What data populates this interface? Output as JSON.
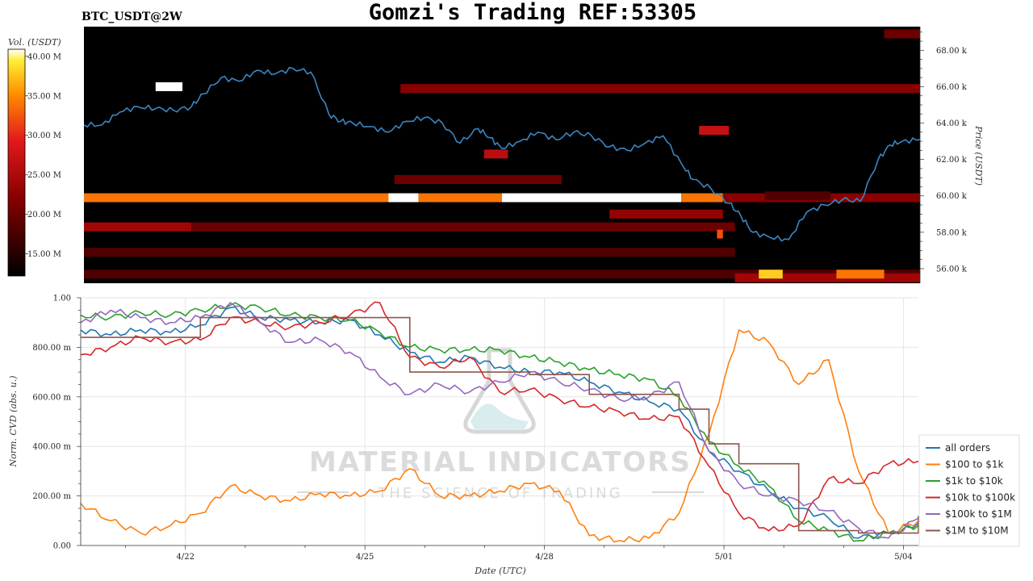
{
  "header": {
    "symbol": "BTC_USDT@2W",
    "title": "Gomzi's Trading REF:53305"
  },
  "colorbar": {
    "label": "Vol. (USDT)",
    "ticks": [
      "15.00 M",
      "20.00 M",
      "25.00 M",
      "30.00 M",
      "35.00 M",
      "40.00 M"
    ],
    "range": [
      12.2,
      40.9
    ]
  },
  "watermark": {
    "line1": "MATERIAL INDICATORS",
    "line2": "THE SCIENCE OF TRADING"
  },
  "chart_data": [
    {
      "type": "heatmap",
      "ylabel": "Price (USDT)",
      "ylim": [
        55.2,
        69.3
      ],
      "y_ticks": [
        "56.00 k",
        "58.00 k",
        "60.00 k",
        "62.00 k",
        "64.00 k",
        "66.00 k",
        "68.00 k"
      ],
      "y_tick_values": [
        56,
        58,
        60,
        62,
        64,
        66,
        68
      ],
      "xlim": [
        0,
        14
      ],
      "bands": [
        {
          "price": 59.9,
          "x_start": 0,
          "x_end": 10.7,
          "volume": 34
        },
        {
          "price": 59.9,
          "x_start": 5.1,
          "x_end": 5.6,
          "volume": 40.9
        },
        {
          "price": 59.9,
          "x_start": 7.0,
          "x_end": 10.0,
          "volume": 40.9
        },
        {
          "price": 59.9,
          "x_start": 10.7,
          "x_end": 14,
          "volume": 22
        },
        {
          "price": 58.3,
          "x_start": 0,
          "x_end": 1.8,
          "volume": 24
        },
        {
          "price": 58.3,
          "x_start": 1.8,
          "x_end": 10.9,
          "volume": 20
        },
        {
          "price": 56.9,
          "x_start": 0,
          "x_end": 10.9,
          "volume": 18
        },
        {
          "price": 55.7,
          "x_start": 0,
          "x_end": 14,
          "volume": 18
        },
        {
          "price": 55.5,
          "x_start": 10.9,
          "x_end": 14,
          "volume": 24
        },
        {
          "price": 55.7,
          "x_start": 11.3,
          "x_end": 11.7,
          "volume": 38
        },
        {
          "price": 55.7,
          "x_start": 12.6,
          "x_end": 13.4,
          "volume": 34
        },
        {
          "price": 65.9,
          "x_start": 5.3,
          "x_end": 14,
          "volume": 22
        },
        {
          "price": 60.9,
          "x_start": 5.2,
          "x_end": 8.0,
          "volume": 20
        },
        {
          "price": 59.0,
          "x_start": 8.8,
          "x_end": 10.7,
          "volume": 23
        },
        {
          "price": 66.0,
          "x_start": 1.2,
          "x_end": 1.65,
          "volume": 44
        },
        {
          "price": 63.6,
          "x_start": 10.3,
          "x_end": 10.8,
          "volume": 27
        },
        {
          "price": 62.3,
          "x_start": 6.7,
          "x_end": 7.1,
          "volume": 26
        },
        {
          "price": 57.9,
          "x_start": 10.6,
          "x_end": 10.7,
          "volume": 32
        },
        {
          "price": 60.0,
          "x_start": 11.4,
          "x_end": 12.5,
          "volume": 18
        },
        {
          "price": 68.9,
          "x_start": 13.4,
          "x_end": 14,
          "volume": 20
        }
      ],
      "price": {
        "name": "BTC_USDT",
        "x": [
          0,
          0.3,
          0.6,
          0.9,
          1.2,
          1.5,
          1.8,
          2.0,
          2.3,
          2.6,
          2.9,
          3.2,
          3.5,
          3.8,
          4.1,
          4.3,
          4.5,
          4.8,
          5.1,
          5.4,
          5.7,
          6.0,
          6.3,
          6.6,
          6.8,
          7.0,
          7.3,
          7.6,
          7.9,
          8.2,
          8.5,
          8.8,
          9.1,
          9.4,
          9.7,
          10.0,
          10.2,
          10.5,
          10.8,
          11.0,
          11.2,
          11.5,
          11.8,
          12.1,
          12.4,
          12.7,
          13.0,
          13.3,
          13.5,
          13.7,
          14.0
        ],
        "y": [
          63.9,
          63.9,
          64.6,
          64.9,
          64.8,
          64.7,
          64.9,
          65.6,
          66.5,
          66.3,
          66.9,
          66.7,
          67.0,
          66.8,
          64.5,
          64.1,
          64.0,
          63.8,
          63.5,
          64.1,
          64.3,
          64.0,
          62.9,
          63.7,
          63.2,
          62.6,
          63.0,
          63.5,
          63.1,
          63.5,
          63.3,
          62.7,
          62.5,
          62.9,
          63.3,
          61.8,
          60.9,
          60.4,
          59.6,
          58.9,
          58.0,
          57.7,
          57.6,
          59.1,
          59.5,
          59.8,
          59.7,
          62.0,
          62.8,
          63.0,
          63.1
        ]
      }
    },
    {
      "type": "line",
      "xlabel": "Date (UTC)",
      "ylabel": "Norm. CVD (abs. u.)",
      "ylim": [
        0,
        1
      ],
      "y_ticks": [
        "0.00",
        "200.00 m",
        "400.00 m",
        "600.00 m",
        "800.00 m",
        "1.00"
      ],
      "y_tick_values": [
        0,
        0.2,
        0.4,
        0.6,
        0.8,
        1.0
      ],
      "xlim": [
        0,
        14
      ],
      "x_ticks": [
        "4/22",
        "4/25",
        "4/28",
        "5/01",
        "5/04"
      ],
      "x_tick_values": [
        1.75,
        4.75,
        7.75,
        10.75,
        13.75
      ],
      "grid": true,
      "legend_position": "lower-right",
      "x": [
        0,
        0.5,
        1.0,
        1.5,
        2.0,
        2.5,
        3.0,
        3.5,
        4.0,
        4.5,
        5.0,
        5.5,
        6.0,
        6.5,
        7.0,
        7.5,
        8.0,
        8.5,
        9.0,
        9.5,
        10.0,
        10.5,
        11.0,
        11.5,
        12.0,
        12.5,
        13.0,
        13.5,
        14.0
      ],
      "series": [
        {
          "name": "all orders",
          "color": "#1f77b4",
          "values": [
            0.87,
            0.85,
            0.87,
            0.86,
            0.89,
            0.96,
            0.92,
            0.91,
            0.9,
            0.91,
            0.85,
            0.78,
            0.74,
            0.76,
            0.72,
            0.7,
            0.7,
            0.66,
            0.62,
            0.58,
            0.55,
            0.38,
            0.3,
            0.22,
            0.15,
            0.11,
            0.03,
            0.05,
            0.09
          ]
        },
        {
          "name": "$100 to $1k",
          "color": "#ff7f0e",
          "values": [
            0.17,
            0.1,
            0.05,
            0.08,
            0.13,
            0.24,
            0.2,
            0.18,
            0.21,
            0.2,
            0.22,
            0.31,
            0.2,
            0.2,
            0.22,
            0.25,
            0.22,
            0.04,
            0.02,
            0.03,
            0.13,
            0.45,
            0.87,
            0.82,
            0.65,
            0.75,
            0.3,
            0.05,
            0.1
          ]
        },
        {
          "name": "$1k to $10k",
          "color": "#2ca02c",
          "values": [
            0.93,
            0.92,
            0.94,
            0.93,
            0.95,
            0.97,
            0.96,
            0.93,
            0.92,
            0.91,
            0.86,
            0.8,
            0.79,
            0.79,
            0.79,
            0.76,
            0.74,
            0.71,
            0.69,
            0.67,
            0.6,
            0.42,
            0.32,
            0.24,
            0.1,
            0.06,
            0.02,
            0.05,
            0.08
          ]
        },
        {
          "name": "$10k to $100k",
          "color": "#d62728",
          "values": [
            0.77,
            0.8,
            0.84,
            0.82,
            0.83,
            0.92,
            0.9,
            0.88,
            0.9,
            0.93,
            0.98,
            0.76,
            0.72,
            0.76,
            0.62,
            0.63,
            0.59,
            0.56,
            0.54,
            0.51,
            0.52,
            0.32,
            0.13,
            0.06,
            0.08,
            0.27,
            0.25,
            0.33,
            0.34
          ]
        },
        {
          "name": "$100k to $1M",
          "color": "#9467bd",
          "values": [
            0.9,
            0.95,
            0.92,
            0.9,
            0.92,
            0.98,
            0.9,
            0.82,
            0.83,
            0.78,
            0.68,
            0.61,
            0.65,
            0.62,
            0.66,
            0.7,
            0.66,
            0.63,
            0.59,
            0.6,
            0.66,
            0.38,
            0.25,
            0.2,
            0.18,
            0.14,
            0.07,
            0.03,
            0.11
          ]
        },
        {
          "name": "$1M to $10M",
          "color": "#8c564b",
          "values": [
            0.84,
            0.84,
            0.84,
            0.84,
            0.92,
            0.92,
            0.92,
            0.92,
            0.92,
            0.92,
            0.92,
            0.7,
            0.7,
            0.7,
            0.7,
            0.69,
            0.69,
            0.61,
            0.61,
            0.61,
            0.55,
            0.41,
            0.33,
            0.33,
            0.06,
            0.06,
            0.05,
            0.05,
            0.12
          ]
        }
      ]
    }
  ]
}
